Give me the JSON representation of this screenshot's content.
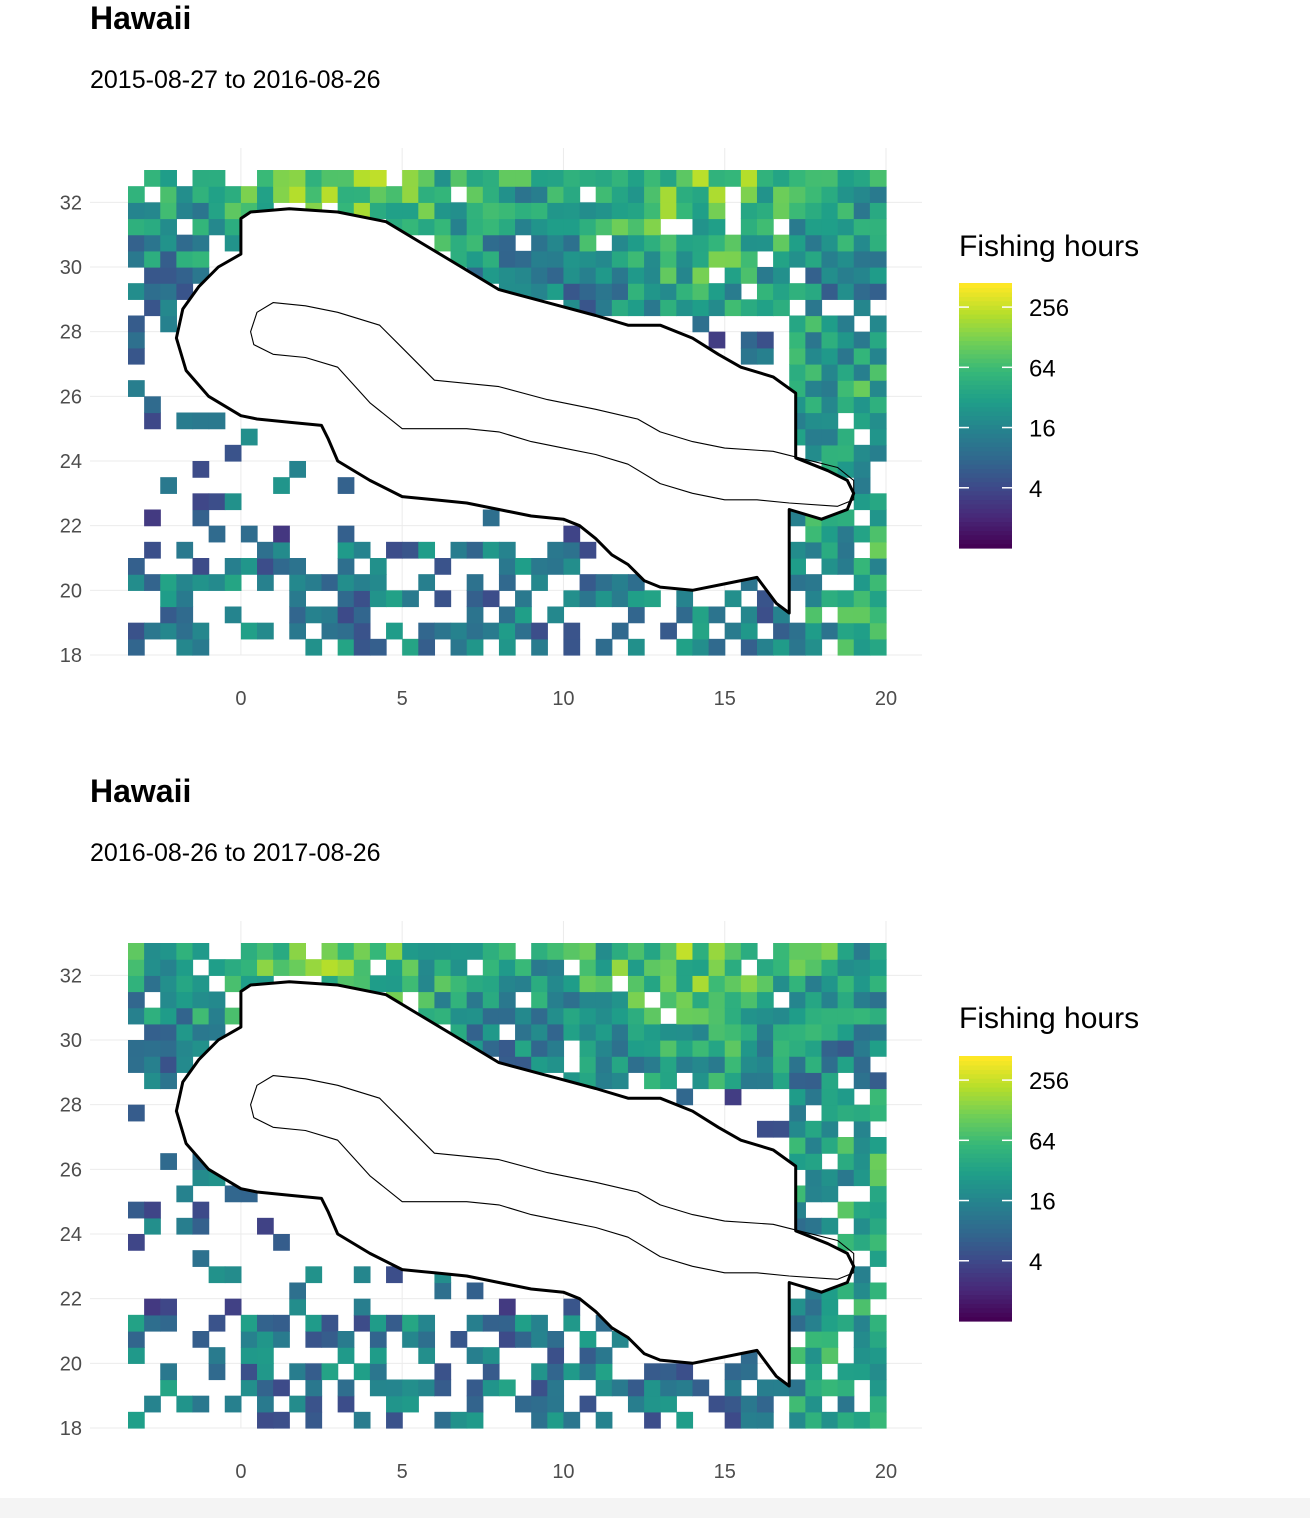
{
  "chart_data": [
    {
      "type": "heatmap",
      "title": "Hawaii",
      "subtitle": "2015-08-27 to 2016-08-26",
      "xlabel": "",
      "ylabel": "",
      "xlim": [
        -3.5,
        20
      ],
      "ylim": [
        18,
        33
      ],
      "x_ticks": [
        0,
        5,
        10,
        15,
        20
      ],
      "y_ticks": [
        18,
        20,
        22,
        24,
        26,
        28,
        30,
        32
      ],
      "cell_size": 0.5,
      "color_scale": "viridis",
      "log_scale": true,
      "legend_title": "Fishing hours",
      "legend_breaks": [
        256,
        64,
        16,
        4
      ],
      "legend_position": "right",
      "grid": true,
      "seed": 11
    },
    {
      "type": "heatmap",
      "title": "Hawaii",
      "subtitle": "2016-08-26 to 2017-08-26",
      "xlabel": "",
      "ylabel": "",
      "xlim": [
        -3.5,
        20
      ],
      "ylim": [
        18,
        33
      ],
      "x_ticks": [
        0,
        5,
        10,
        15,
        20
      ],
      "y_ticks": [
        18,
        20,
        22,
        24,
        26,
        28,
        30,
        32
      ],
      "cell_size": 0.5,
      "color_scale": "viridis",
      "log_scale": true,
      "legend_title": "Fishing hours",
      "legend_breaks": [
        256,
        64,
        16,
        4
      ],
      "legend_position": "right",
      "grid": true,
      "seed": 29
    }
  ],
  "colors": {
    "viridis_low": "#440154",
    "viridis_mid": "#21908d",
    "viridis_high": "#fde725",
    "grid": "#ebebeb",
    "axis_text": "#4d4d4d"
  }
}
